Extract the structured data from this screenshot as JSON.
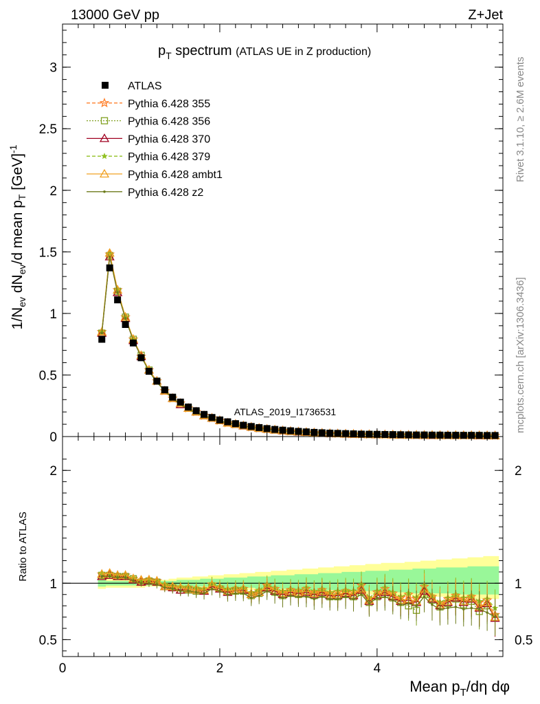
{
  "header": {
    "energy_label": "13000 GeV pp",
    "process_label": "Z+Jet"
  },
  "side_text": {
    "rivet": "Rivet 3.1.10, ≥ 2.6M events",
    "mcplots": "mcplots.cern.ch [arXiv:1306.3436]"
  },
  "watermark": "ATLAS_2019_I1736531",
  "colors": {
    "atlas": "#000000",
    "p355": "#ff7f2a",
    "p356": "#80a020",
    "p370": "#a00020",
    "p379": "#90c020",
    "ambt1": "#f0a020",
    "z2": "#6b7a1a",
    "band_yellow": "#ffff99",
    "band_green": "#99f799"
  },
  "chart_data": [
    {
      "type": "line",
      "title_main": "p",
      "title_sub": "T",
      "title_main2": " spectrum",
      "title_small": "(ATLAS UE in Z production)",
      "ylabel": "1/N_ev dN_ev/d mean p_T [GeV]^-1",
      "ylabel_parts": {
        "a": "1/N",
        "a_sub": "ev",
        "b": " dN",
        "b_sub": "ev",
        "c": "/d mean p",
        "c_sub": "T",
        "d": " [GeV]",
        "d_sup": "-1"
      },
      "xlim": [
        0,
        5.6
      ],
      "ylim": [
        0,
        3.35
      ],
      "yticks": [
        "0",
        "0.5",
        "1",
        "1.5",
        "2",
        "2.5",
        "3"
      ],
      "x": [
        0.5,
        0.6,
        0.7,
        0.8,
        0.9,
        1.0,
        1.1,
        1.2,
        1.3,
        1.4,
        1.5,
        1.6,
        1.7,
        1.8,
        1.9,
        2.0,
        2.1,
        2.2,
        2.3,
        2.4,
        2.5,
        2.6,
        2.7,
        2.8,
        2.9,
        3.0,
        3.1,
        3.2,
        3.3,
        3.4,
        3.5,
        3.6,
        3.7,
        3.8,
        3.9,
        4.0,
        4.1,
        4.2,
        4.3,
        4.4,
        4.5,
        4.6,
        4.7,
        4.8,
        4.9,
        5.0,
        5.1,
        5.2,
        5.3,
        5.4,
        5.5
      ],
      "series": [
        {
          "name": "ATLAS",
          "values": [
            0.79,
            1.37,
            1.11,
            0.91,
            0.76,
            0.64,
            0.53,
            0.45,
            0.38,
            0.32,
            0.28,
            0.24,
            0.21,
            0.18,
            0.155,
            0.135,
            0.12,
            0.105,
            0.092,
            0.082,
            0.073,
            0.065,
            0.058,
            0.052,
            0.047,
            0.042,
            0.038,
            0.034,
            0.031,
            0.028,
            0.026,
            0.024,
            0.022,
            0.02,
            0.019,
            0.018,
            0.017,
            0.016,
            0.015,
            0.014,
            0.013,
            0.013,
            0.012,
            0.012,
            0.011,
            0.011,
            0.01,
            0.01,
            0.01,
            0.009,
            0.009
          ]
        },
        {
          "name": "Pythia 6.428 355",
          "values": [
            0.85,
            1.48,
            1.19,
            0.97,
            0.79,
            0.65,
            0.54,
            0.45,
            0.37,
            0.31,
            0.27,
            0.23,
            0.2,
            0.17,
            0.15,
            0.13,
            0.11,
            0.1,
            0.088,
            0.077,
            0.068,
            0.06,
            0.054,
            0.048,
            0.043,
            0.039,
            0.035,
            0.031,
            0.028,
            0.025,
            0.023,
            0.021,
            0.02,
            0.018,
            0.017,
            0.016,
            0.015,
            0.014,
            0.013,
            0.012,
            0.012,
            0.011,
            0.011,
            0.01,
            0.01,
            0.01,
            0.009,
            0.009,
            0.009,
            0.008,
            0.007
          ]
        },
        {
          "name": "Pythia 6.428 356",
          "values": [
            0.84,
            1.47,
            1.18,
            0.97,
            0.79,
            0.66,
            0.54,
            0.45,
            0.37,
            0.31,
            0.26,
            0.23,
            0.2,
            0.17,
            0.15,
            0.13,
            0.11,
            0.1,
            0.087,
            0.076,
            0.067,
            0.06,
            0.053,
            0.047,
            0.042,
            0.038,
            0.034,
            0.031,
            0.028,
            0.025,
            0.023,
            0.021,
            0.019,
            0.018,
            0.017,
            0.016,
            0.015,
            0.014,
            0.013,
            0.012,
            0.011,
            0.011,
            0.01,
            0.01,
            0.01,
            0.009,
            0.009,
            0.009,
            0.008,
            0.008,
            0.007
          ]
        },
        {
          "name": "Pythia 6.428 370",
          "values": [
            0.84,
            1.46,
            1.17,
            0.96,
            0.78,
            0.65,
            0.54,
            0.45,
            0.37,
            0.31,
            0.26,
            0.23,
            0.2,
            0.17,
            0.15,
            0.13,
            0.11,
            0.1,
            0.087,
            0.076,
            0.067,
            0.06,
            0.053,
            0.047,
            0.042,
            0.038,
            0.034,
            0.031,
            0.028,
            0.025,
            0.023,
            0.021,
            0.019,
            0.018,
            0.017,
            0.016,
            0.015,
            0.014,
            0.013,
            0.012,
            0.011,
            0.011,
            0.01,
            0.01,
            0.01,
            0.009,
            0.009,
            0.009,
            0.008,
            0.008,
            0.007
          ]
        },
        {
          "name": "Pythia 6.428 379",
          "values": [
            0.85,
            1.48,
            1.19,
            0.97,
            0.79,
            0.65,
            0.54,
            0.45,
            0.37,
            0.31,
            0.27,
            0.23,
            0.2,
            0.17,
            0.15,
            0.13,
            0.11,
            0.1,
            0.088,
            0.077,
            0.068,
            0.06,
            0.054,
            0.048,
            0.043,
            0.039,
            0.035,
            0.031,
            0.028,
            0.025,
            0.023,
            0.021,
            0.02,
            0.018,
            0.017,
            0.016,
            0.015,
            0.014,
            0.013,
            0.012,
            0.012,
            0.011,
            0.011,
            0.01,
            0.01,
            0.01,
            0.009,
            0.009,
            0.009,
            0.008,
            0.007
          ]
        },
        {
          "name": "Pythia 6.428 ambt1",
          "values": [
            0.85,
            1.49,
            1.19,
            0.97,
            0.79,
            0.66,
            0.54,
            0.45,
            0.37,
            0.31,
            0.27,
            0.23,
            0.2,
            0.17,
            0.15,
            0.13,
            0.11,
            0.1,
            0.088,
            0.077,
            0.068,
            0.06,
            0.054,
            0.048,
            0.043,
            0.039,
            0.035,
            0.031,
            0.028,
            0.025,
            0.023,
            0.021,
            0.02,
            0.018,
            0.017,
            0.016,
            0.015,
            0.014,
            0.013,
            0.012,
            0.012,
            0.011,
            0.011,
            0.01,
            0.01,
            0.01,
            0.009,
            0.009,
            0.009,
            0.008,
            0.007
          ]
        },
        {
          "name": "Pythia 6.428 z2",
          "values": [
            0.84,
            1.46,
            1.17,
            0.96,
            0.78,
            0.65,
            0.53,
            0.44,
            0.37,
            0.31,
            0.26,
            0.22,
            0.19,
            0.17,
            0.145,
            0.125,
            0.11,
            0.097,
            0.085,
            0.074,
            0.065,
            0.058,
            0.052,
            0.046,
            0.041,
            0.037,
            0.033,
            0.03,
            0.027,
            0.024,
            0.022,
            0.02,
            0.019,
            0.017,
            0.016,
            0.015,
            0.014,
            0.013,
            0.012,
            0.012,
            0.011,
            0.01,
            0.01,
            0.01,
            0.009,
            0.009,
            0.009,
            0.008,
            0.008,
            0.007,
            0.007
          ]
        }
      ],
      "legend_placement": "top-left"
    },
    {
      "type": "line",
      "ylabel": "Ratio to ATLAS",
      "xlabel_parts": {
        "a": "Mean p",
        "a_sub": "T",
        "b": "/dη dφ"
      },
      "xlim": [
        0,
        5.6
      ],
      "ylim": [
        0.35,
        2.3
      ],
      "yticks": [
        "0.5",
        "1",
        "2"
      ],
      "xticks": [
        "0",
        "2",
        "4"
      ],
      "x": [
        0.5,
        0.6,
        0.7,
        0.8,
        0.9,
        1.0,
        1.1,
        1.2,
        1.3,
        1.4,
        1.5,
        1.6,
        1.7,
        1.8,
        1.9,
        2.0,
        2.1,
        2.2,
        2.3,
        2.4,
        2.5,
        2.6,
        2.7,
        2.8,
        2.9,
        3.0,
        3.1,
        3.2,
        3.3,
        3.4,
        3.5,
        3.6,
        3.7,
        3.8,
        3.9,
        4.0,
        4.1,
        4.2,
        4.3,
        4.4,
        4.5,
        4.6,
        4.7,
        4.8,
        4.9,
        5.0,
        5.1,
        5.2,
        5.3,
        5.4,
        5.5
      ],
      "band_yellow": {
        "lo": [
          0.95,
          0.96,
          0.96,
          0.96,
          0.96,
          0.96,
          0.97,
          0.97,
          0.97,
          0.96,
          0.96,
          0.96,
          0.95,
          0.95,
          0.95,
          0.95,
          0.94,
          0.94,
          0.94,
          0.94,
          0.93,
          0.93,
          0.93,
          0.93,
          0.92,
          0.92,
          0.92,
          0.92,
          0.91,
          0.91,
          0.91,
          0.91,
          0.9,
          0.9,
          0.9,
          0.9,
          0.89,
          0.89,
          0.89,
          0.89,
          0.88,
          0.88,
          0.88,
          0.88,
          0.87,
          0.87,
          0.87,
          0.87,
          0.86,
          0.86,
          0.86
        ],
        "hi": [
          1.05,
          1.04,
          1.04,
          1.04,
          1.04,
          1.04,
          1.03,
          1.03,
          1.03,
          1.04,
          1.05,
          1.05,
          1.06,
          1.06,
          1.07,
          1.07,
          1.08,
          1.08,
          1.09,
          1.09,
          1.1,
          1.1,
          1.11,
          1.11,
          1.12,
          1.12,
          1.13,
          1.13,
          1.14,
          1.14,
          1.15,
          1.15,
          1.16,
          1.16,
          1.17,
          1.17,
          1.18,
          1.18,
          1.18,
          1.19,
          1.19,
          1.2,
          1.2,
          1.21,
          1.21,
          1.22,
          1.22,
          1.23,
          1.23,
          1.24,
          1.24
        ]
      },
      "band_green": {
        "lo": [
          0.97,
          0.98,
          0.98,
          0.98,
          0.98,
          0.98,
          0.98,
          0.98,
          0.98,
          0.98,
          0.98,
          0.97,
          0.97,
          0.97,
          0.97,
          0.96,
          0.96,
          0.96,
          0.96,
          0.96,
          0.95,
          0.95,
          0.95,
          0.95,
          0.95,
          0.94,
          0.94,
          0.94,
          0.94,
          0.94,
          0.93,
          0.93,
          0.93,
          0.93,
          0.93,
          0.92,
          0.92,
          0.92,
          0.92,
          0.92,
          0.91,
          0.91,
          0.91,
          0.91,
          0.91,
          0.9,
          0.9,
          0.9,
          0.9,
          0.9,
          0.9
        ],
        "hi": [
          1.03,
          1.02,
          1.02,
          1.02,
          1.02,
          1.02,
          1.02,
          1.02,
          1.02,
          1.02,
          1.03,
          1.03,
          1.03,
          1.04,
          1.04,
          1.04,
          1.05,
          1.05,
          1.05,
          1.06,
          1.06,
          1.06,
          1.07,
          1.07,
          1.07,
          1.08,
          1.08,
          1.08,
          1.09,
          1.09,
          1.09,
          1.1,
          1.1,
          1.1,
          1.11,
          1.11,
          1.11,
          1.12,
          1.12,
          1.12,
          1.13,
          1.13,
          1.13,
          1.14,
          1.14,
          1.14,
          1.14,
          1.15,
          1.15,
          1.15,
          1.15
        ]
      },
      "series": [
        {
          "name": "Pythia 6.428 355",
          "values": [
            1.08,
            1.08,
            1.07,
            1.07,
            1.04,
            1.02,
            1.03,
            1.02,
            0.98,
            0.97,
            0.96,
            0.96,
            0.95,
            0.94,
            0.99,
            0.96,
            0.94,
            0.95,
            0.95,
            0.91,
            0.93,
            0.98,
            0.95,
            0.92,
            0.94,
            0.93,
            0.95,
            0.92,
            0.94,
            0.91,
            0.92,
            0.93,
            0.92,
            0.98,
            0.86,
            0.92,
            0.95,
            0.91,
            0.87,
            0.9,
            0.86,
            0.97,
            0.88,
            0.82,
            0.86,
            0.89,
            0.86,
            0.88,
            0.83,
            0.85,
            0.72
          ]
        },
        {
          "name": "Pythia 6.428 356",
          "values": [
            1.07,
            1.07,
            1.06,
            1.06,
            1.04,
            1.01,
            1.02,
            1.01,
            0.97,
            0.96,
            0.94,
            0.94,
            0.93,
            0.93,
            0.97,
            0.95,
            0.92,
            0.93,
            0.93,
            0.89,
            0.91,
            0.95,
            0.92,
            0.89,
            0.91,
            0.9,
            0.91,
            0.89,
            0.91,
            0.88,
            0.88,
            0.9,
            0.88,
            0.92,
            0.83,
            0.88,
            0.9,
            0.87,
            0.83,
            0.8,
            0.76,
            0.9,
            0.85,
            0.79,
            0.82,
            0.86,
            0.81,
            0.84,
            0.75,
            0.8,
            0.7
          ]
        },
        {
          "name": "Pythia 6.428 370",
          "values": [
            1.06,
            1.07,
            1.06,
            1.06,
            1.03,
            1.01,
            1.02,
            1.01,
            0.97,
            0.96,
            0.94,
            0.95,
            0.94,
            0.93,
            0.97,
            0.95,
            0.92,
            0.94,
            0.94,
            0.9,
            0.92,
            0.96,
            0.93,
            0.9,
            0.92,
            0.91,
            0.92,
            0.9,
            0.92,
            0.89,
            0.89,
            0.91,
            0.89,
            0.94,
            0.84,
            0.89,
            0.92,
            0.88,
            0.84,
            0.85,
            0.83,
            0.93,
            0.86,
            0.8,
            0.83,
            0.87,
            0.83,
            0.86,
            0.78,
            0.82,
            0.69
          ]
        },
        {
          "name": "Pythia 6.428 379",
          "values": [
            1.09,
            1.08,
            1.07,
            1.07,
            1.05,
            1.02,
            1.03,
            1.02,
            0.99,
            0.97,
            0.97,
            0.97,
            0.96,
            0.95,
            1.0,
            0.97,
            0.95,
            0.96,
            0.96,
            0.92,
            0.94,
            0.99,
            0.96,
            0.93,
            0.95,
            0.94,
            0.96,
            0.93,
            0.95,
            0.92,
            0.93,
            0.94,
            0.93,
            0.99,
            0.87,
            0.93,
            0.96,
            0.92,
            0.88,
            0.91,
            0.87,
            0.98,
            0.89,
            0.83,
            0.87,
            0.9,
            0.87,
            0.89,
            0.84,
            0.86,
            0.78
          ]
        },
        {
          "name": "Pythia 6.428 ambt1",
          "values": [
            1.08,
            1.09,
            1.07,
            1.07,
            1.04,
            1.03,
            1.03,
            1.02,
            0.97,
            0.97,
            0.96,
            0.95,
            0.94,
            0.94,
            0.98,
            0.96,
            0.93,
            0.94,
            0.95,
            0.9,
            0.92,
            0.97,
            0.94,
            0.91,
            0.93,
            0.92,
            0.93,
            0.91,
            0.93,
            0.9,
            0.9,
            0.92,
            0.9,
            0.95,
            0.85,
            0.9,
            0.93,
            0.89,
            0.85,
            0.86,
            0.84,
            0.95,
            0.87,
            0.81,
            0.84,
            0.88,
            0.84,
            0.87,
            0.79,
            0.83,
            0.7
          ]
        },
        {
          "name": "Pythia 6.428 z2",
          "values": [
            1.06,
            1.06,
            1.05,
            1.05,
            1.02,
            1.0,
            1.0,
            0.99,
            0.96,
            0.95,
            0.93,
            0.93,
            0.92,
            0.91,
            0.95,
            0.93,
            0.9,
            0.91,
            0.91,
            0.87,
            0.89,
            0.93,
            0.9,
            0.87,
            0.89,
            0.88,
            0.88,
            0.86,
            0.88,
            0.86,
            0.86,
            0.88,
            0.86,
            0.9,
            0.82,
            0.87,
            0.88,
            0.85,
            0.81,
            0.82,
            0.8,
            0.88,
            0.81,
            0.77,
            0.78,
            0.79,
            0.77,
            0.78,
            0.77,
            0.74,
            0.7
          ]
        }
      ]
    }
  ]
}
